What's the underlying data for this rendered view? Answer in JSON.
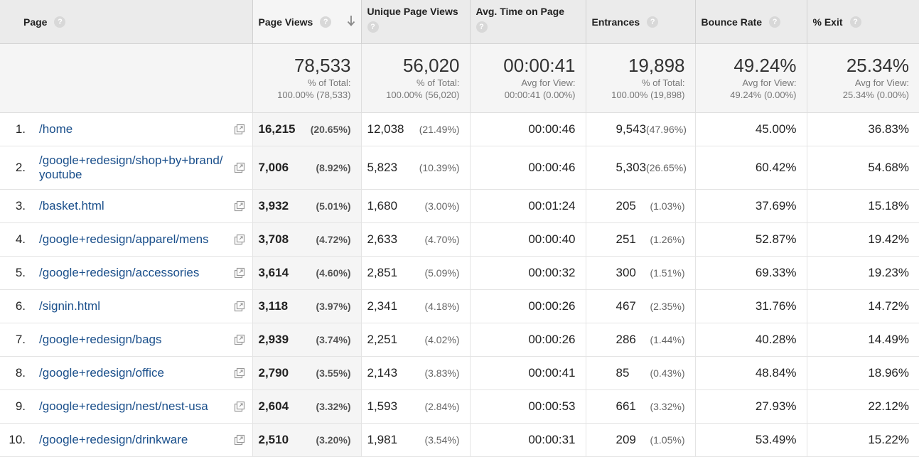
{
  "headers": {
    "page": "Page",
    "page_views": "Page Views",
    "unique_page_views": "Unique Page Views",
    "avg_time": "Avg. Time on Page",
    "entrances": "Entrances",
    "bounce_rate": "Bounce Rate",
    "exit": "% Exit",
    "help_glyph": "?"
  },
  "totals": {
    "page_views": {
      "value": "78,533",
      "label": "% of Total:",
      "detail": "100.00% (78,533)"
    },
    "unique_page_views": {
      "value": "56,020",
      "label": "% of Total:",
      "detail": "100.00% (56,020)"
    },
    "avg_time": {
      "value": "00:00:41",
      "label": "Avg for View:",
      "detail": "00:00:41 (0.00%)"
    },
    "entrances": {
      "value": "19,898",
      "label": "% of Total:",
      "detail": "100.00% (19,898)"
    },
    "bounce_rate": {
      "value": "49.24%",
      "label": "Avg for View:",
      "detail": "49.24% (0.00%)"
    },
    "exit": {
      "value": "25.34%",
      "label": "Avg for View:",
      "detail": "25.34% (0.00%)"
    }
  },
  "rows": [
    {
      "idx": "1.",
      "page": "/home",
      "pv": "16,215",
      "pv_pct": "(20.65%)",
      "upv": "12,038",
      "upv_pct": "(21.49%)",
      "avg": "00:00:46",
      "ent": "9,543",
      "ent_pct": "(47.96%)",
      "br": "45.00%",
      "exit": "36.83%"
    },
    {
      "idx": "2.",
      "page": "/google+redesign/shop+by+brand/youtube",
      "pv": "7,006",
      "pv_pct": "(8.92%)",
      "upv": "5,823",
      "upv_pct": "(10.39%)",
      "avg": "00:00:46",
      "ent": "5,303",
      "ent_pct": "(26.65%)",
      "br": "60.42%",
      "exit": "54.68%"
    },
    {
      "idx": "3.",
      "page": "/basket.html",
      "pv": "3,932",
      "pv_pct": "(5.01%)",
      "upv": "1,680",
      "upv_pct": "(3.00%)",
      "avg": "00:01:24",
      "ent": "205",
      "ent_pct": "(1.03%)",
      "br": "37.69%",
      "exit": "15.18%"
    },
    {
      "idx": "4.",
      "page": "/google+redesign/apparel/mens",
      "pv": "3,708",
      "pv_pct": "(4.72%)",
      "upv": "2,633",
      "upv_pct": "(4.70%)",
      "avg": "00:00:40",
      "ent": "251",
      "ent_pct": "(1.26%)",
      "br": "52.87%",
      "exit": "19.42%"
    },
    {
      "idx": "5.",
      "page": "/google+redesign/accessories",
      "pv": "3,614",
      "pv_pct": "(4.60%)",
      "upv": "2,851",
      "upv_pct": "(5.09%)",
      "avg": "00:00:32",
      "ent": "300",
      "ent_pct": "(1.51%)",
      "br": "69.33%",
      "exit": "19.23%"
    },
    {
      "idx": "6.",
      "page": "/signin.html",
      "pv": "3,118",
      "pv_pct": "(3.97%)",
      "upv": "2,341",
      "upv_pct": "(4.18%)",
      "avg": "00:00:26",
      "ent": "467",
      "ent_pct": "(2.35%)",
      "br": "31.76%",
      "exit": "14.72%"
    },
    {
      "idx": "7.",
      "page": "/google+redesign/bags",
      "pv": "2,939",
      "pv_pct": "(3.74%)",
      "upv": "2,251",
      "upv_pct": "(4.02%)",
      "avg": "00:00:26",
      "ent": "286",
      "ent_pct": "(1.44%)",
      "br": "40.28%",
      "exit": "14.49%"
    },
    {
      "idx": "8.",
      "page": "/google+redesign/office",
      "pv": "2,790",
      "pv_pct": "(3.55%)",
      "upv": "2,143",
      "upv_pct": "(3.83%)",
      "avg": "00:00:41",
      "ent": "85",
      "ent_pct": "(0.43%)",
      "br": "48.84%",
      "exit": "18.96%"
    },
    {
      "idx": "9.",
      "page": "/google+redesign/nest/nest-usa",
      "pv": "2,604",
      "pv_pct": "(3.32%)",
      "upv": "1,593",
      "upv_pct": "(2.84%)",
      "avg": "00:00:53",
      "ent": "661",
      "ent_pct": "(3.32%)",
      "br": "27.93%",
      "exit": "22.12%"
    },
    {
      "idx": "10.",
      "page": "/google+redesign/drinkware",
      "pv": "2,510",
      "pv_pct": "(3.20%)",
      "upv": "1,981",
      "upv_pct": "(3.54%)",
      "avg": "00:00:31",
      "ent": "209",
      "ent_pct": "(1.05%)",
      "br": "53.49%",
      "exit": "15.22%"
    }
  ],
  "icons": {
    "help": "help-circle-icon",
    "sort": "sort-descending-arrow-icon",
    "open_page": "open-in-new-window-icon"
  },
  "colors": {
    "link": "#1a4f8b",
    "header_bg": "#ebebeb",
    "totals_bg": "#f5f5f5",
    "help_icon": "#d8d8d8"
  }
}
